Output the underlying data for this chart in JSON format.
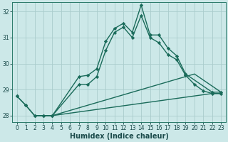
{
  "xlabel": "Humidex (Indice chaleur)",
  "background_color": "#cce8e8",
  "grid_color": "#aacccc",
  "line_color": "#1a6b5a",
  "xlim": [
    -0.5,
    23.5
  ],
  "ylim": [
    27.75,
    32.35
  ],
  "yticks": [
    28,
    29,
    30,
    31,
    32
  ],
  "xticks": [
    0,
    1,
    2,
    3,
    4,
    5,
    6,
    7,
    8,
    9,
    10,
    11,
    12,
    13,
    14,
    15,
    16,
    17,
    18,
    19,
    20,
    21,
    22,
    23
  ],
  "series1_x": [
    0,
    1,
    2,
    3,
    4,
    7,
    8,
    9,
    10,
    11,
    12,
    13,
    14,
    15,
    16,
    17,
    18,
    19,
    22,
    23
  ],
  "series1_y": [
    28.75,
    28.4,
    28.0,
    28.0,
    28.0,
    29.5,
    29.55,
    29.8,
    30.85,
    31.35,
    31.55,
    31.2,
    32.25,
    31.1,
    31.1,
    30.6,
    30.3,
    29.6,
    28.9,
    28.9
  ],
  "series2_x": [
    0,
    1,
    2,
    3,
    4,
    7,
    8,
    9,
    10,
    11,
    12,
    13,
    14,
    15,
    16,
    17,
    18,
    19,
    20,
    21,
    22,
    23
  ],
  "series2_y": [
    28.75,
    28.4,
    28.0,
    28.0,
    28.0,
    29.2,
    29.2,
    29.5,
    30.5,
    31.2,
    31.4,
    31.0,
    31.85,
    31.0,
    30.8,
    30.35,
    30.15,
    29.55,
    29.2,
    28.95,
    28.85,
    28.85
  ],
  "series3_x": [
    2,
    4,
    20,
    23
  ],
  "series3_y": [
    28.0,
    28.0,
    29.6,
    28.9
  ],
  "series4_x": [
    2,
    4,
    22,
    23
  ],
  "series4_y": [
    28.0,
    28.0,
    28.85,
    28.85
  ]
}
